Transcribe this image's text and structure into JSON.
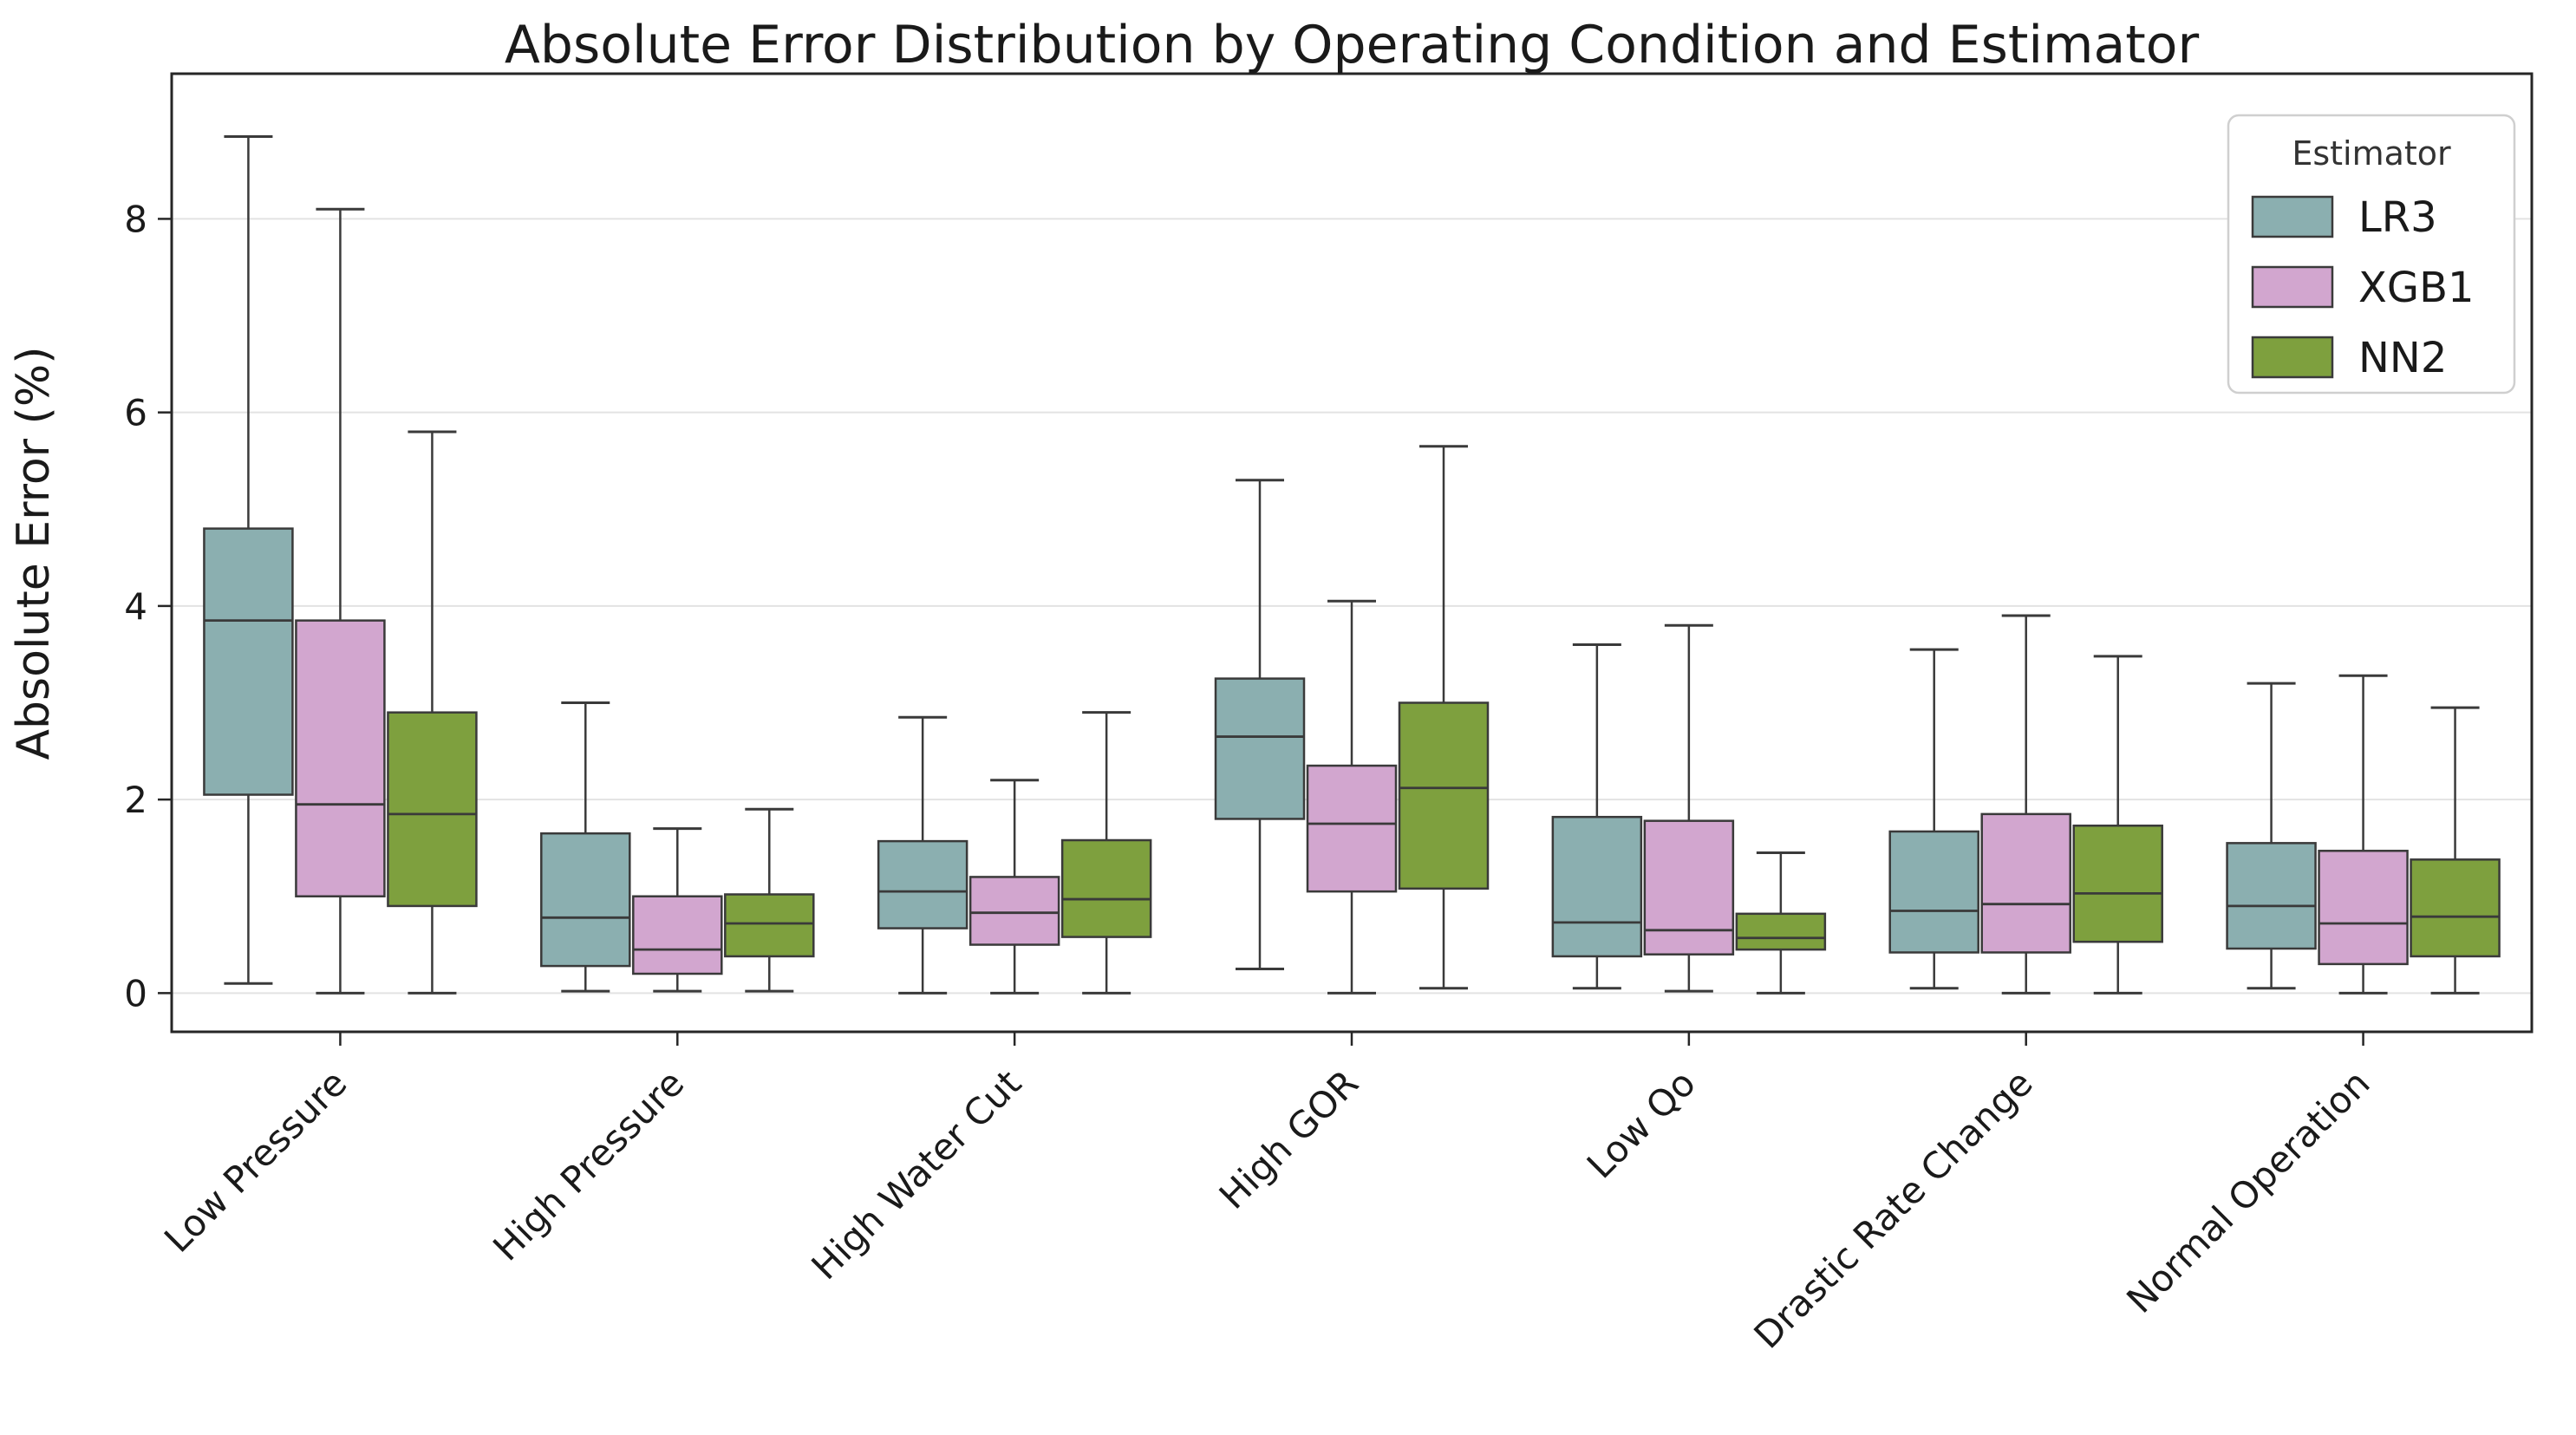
{
  "chart_data": {
    "type": "box",
    "title": "Absolute Error Distribution by Operating Condition and Estimator",
    "ylabel": "Absolute Error (%)",
    "xlabel": "",
    "ylim": [
      -0.4,
      9.5
    ],
    "yticks": [
      0,
      2,
      4,
      6,
      8
    ],
    "grid": true,
    "legend": {
      "title": "Estimator",
      "position": "upper-right",
      "items": [
        {
          "label": "LR3",
          "color": "#8BAFB0"
        },
        {
          "label": "XGB1",
          "color": "#D2A6CF"
        },
        {
          "label": "NN2",
          "color": "#7EA03E"
        }
      ]
    },
    "categories": [
      "Low Pressure",
      "High Pressure",
      "High Water Cut",
      "High GOR",
      "Low Qo",
      "Drastic Rate Change",
      "Normal Operation"
    ],
    "series": [
      {
        "name": "LR3",
        "color": "#8BAFB0",
        "boxes": [
          {
            "whislo": 0.1,
            "q1": 2.05,
            "med": 3.85,
            "q3": 4.8,
            "whishi": 8.85
          },
          {
            "whislo": 0.02,
            "q1": 0.28,
            "med": 0.78,
            "q3": 1.65,
            "whishi": 3.0
          },
          {
            "whislo": 0.0,
            "q1": 0.67,
            "med": 1.05,
            "q3": 1.57,
            "whishi": 2.85
          },
          {
            "whislo": 0.25,
            "q1": 1.8,
            "med": 2.65,
            "q3": 3.25,
            "whishi": 5.3
          },
          {
            "whislo": 0.05,
            "q1": 0.38,
            "med": 0.73,
            "q3": 1.82,
            "whishi": 3.6
          },
          {
            "whislo": 0.05,
            "q1": 0.42,
            "med": 0.85,
            "q3": 1.67,
            "whishi": 3.55
          },
          {
            "whislo": 0.05,
            "q1": 0.46,
            "med": 0.9,
            "q3": 1.55,
            "whishi": 3.2
          }
        ]
      },
      {
        "name": "XGB1",
        "color": "#D2A6CF",
        "boxes": [
          {
            "whislo": 0.0,
            "q1": 1.0,
            "med": 1.95,
            "q3": 3.85,
            "whishi": 8.1
          },
          {
            "whislo": 0.02,
            "q1": 0.2,
            "med": 0.45,
            "q3": 1.0,
            "whishi": 1.7
          },
          {
            "whislo": 0.0,
            "q1": 0.5,
            "med": 0.83,
            "q3": 1.2,
            "whishi": 2.2
          },
          {
            "whislo": 0.0,
            "q1": 1.05,
            "med": 1.75,
            "q3": 2.35,
            "whishi": 4.05
          },
          {
            "whislo": 0.02,
            "q1": 0.4,
            "med": 0.65,
            "q3": 1.78,
            "whishi": 3.8
          },
          {
            "whislo": 0.0,
            "q1": 0.42,
            "med": 0.92,
            "q3": 1.85,
            "whishi": 3.9
          },
          {
            "whislo": 0.0,
            "q1": 0.3,
            "med": 0.72,
            "q3": 1.47,
            "whishi": 3.28
          }
        ]
      },
      {
        "name": "NN2",
        "color": "#7EA03E",
        "boxes": [
          {
            "whislo": 0.0,
            "q1": 0.9,
            "med": 1.85,
            "q3": 2.9,
            "whishi": 5.8
          },
          {
            "whislo": 0.02,
            "q1": 0.38,
            "med": 0.72,
            "q3": 1.02,
            "whishi": 1.9
          },
          {
            "whislo": 0.0,
            "q1": 0.58,
            "med": 0.97,
            "q3": 1.58,
            "whishi": 2.9
          },
          {
            "whislo": 0.05,
            "q1": 1.08,
            "med": 2.12,
            "q3": 3.0,
            "whishi": 5.65
          },
          {
            "whislo": 0.0,
            "q1": 0.45,
            "med": 0.57,
            "q3": 0.82,
            "whishi": 1.45
          },
          {
            "whislo": 0.0,
            "q1": 0.53,
            "med": 1.03,
            "q3": 1.73,
            "whishi": 3.48
          },
          {
            "whislo": 0.0,
            "q1": 0.38,
            "med": 0.79,
            "q3": 1.38,
            "whishi": 2.95
          }
        ]
      }
    ],
    "colors": {
      "box_edge": "#3A3A3A",
      "whisker": "#3A3A3A",
      "grid": "#E3E3E3",
      "frame": "#262626",
      "legend_border": "#CFCFCF"
    }
  }
}
